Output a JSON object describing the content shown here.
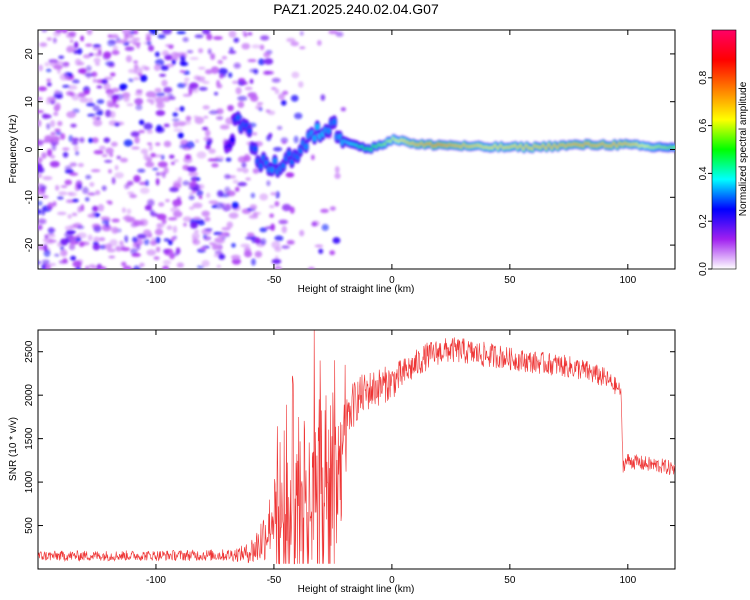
{
  "title": "PAZ1.2025.240.02.04.G07",
  "colors": {
    "line": "#ee3333",
    "axis": "#000000",
    "colormap": [
      "#ffffff",
      "#a020f0",
      "#0000ff",
      "#00ffff",
      "#00ff00",
      "#ffff00",
      "#ff8000",
      "#ff0000",
      "#ff0066"
    ]
  },
  "chart_data": [
    {
      "type": "heatmap",
      "title": "PAZ1.2025.240.02.04.G07",
      "xlabel": "Height of straight line (km)",
      "ylabel": "Frequency (Hz)",
      "xlim": [
        -150,
        120
      ],
      "ylim": [
        -25,
        25
      ],
      "xticks": [
        -100,
        -50,
        0,
        50,
        100
      ],
      "xtick_labels": [
        "-100",
        "-50",
        "0",
        "50",
        "100"
      ],
      "yticks": [
        -20,
        -10,
        0,
        10,
        20
      ],
      "ytick_labels": [
        "-20",
        "-10",
        "0",
        "10",
        "20"
      ],
      "colorbar": {
        "label": "Normalized spectral amplitude",
        "range": [
          0,
          1
        ],
        "ticks": [
          0,
          0.2,
          0.4,
          0.6,
          0.8
        ],
        "tick_labels": [
          "0.0",
          "0.2",
          "0.4",
          "0.6",
          "0.8"
        ]
      },
      "signal_track": {
        "description": "dominant frequency ridge vs height",
        "height_km": [
          -150,
          -100,
          -70,
          -65,
          -60,
          -55,
          -50,
          -45,
          -40,
          -35,
          -30,
          -25,
          -20,
          -15,
          -10,
          -5,
          0,
          5,
          10,
          20,
          40,
          60,
          80,
          100,
          110,
          120
        ],
        "freq_hz": [
          0,
          0,
          0,
          7,
          2,
          -3,
          -4,
          -2,
          -1,
          2,
          4,
          5,
          2,
          1,
          0,
          1,
          2,
          2,
          1,
          1,
          0.5,
          0.5,
          1,
          1,
          0.5,
          0.5
        ],
        "peak_amplitude": [
          0.1,
          0.12,
          0.2,
          0.3,
          0.28,
          0.3,
          0.32,
          0.3,
          0.3,
          0.32,
          0.35,
          0.3,
          0.35,
          0.4,
          0.5,
          0.55,
          0.6,
          0.65,
          0.7,
          0.75,
          0.65,
          0.68,
          0.72,
          0.7,
          0.6,
          0.55
        ]
      }
    },
    {
      "type": "line",
      "title": "",
      "xlabel": "Height of straight line (km)",
      "ylabel": "SNR (10 * v/v)",
      "xlim": [
        -150,
        120
      ],
      "ylim": [
        0,
        2750
      ],
      "xticks": [
        -100,
        -50,
        0,
        50,
        100
      ],
      "xtick_labels": [
        "-100",
        "-50",
        "0",
        "50",
        "100"
      ],
      "yticks": [
        500,
        1000,
        1500,
        2000,
        2500
      ],
      "ytick_labels": [
        "500",
        "1000",
        "1500",
        "2000",
        "2500"
      ],
      "series": [
        {
          "name": "SNR",
          "envelope_x": [
            -150,
            -100,
            -70,
            -62,
            -58,
            -55,
            -52,
            -50,
            -45,
            -40,
            -35,
            -30,
            -28,
            -25,
            -22,
            -20,
            -18,
            -15,
            -10,
            -5,
            0,
            5,
            10,
            15,
            20,
            25,
            30,
            35,
            40,
            45,
            50,
            60,
            70,
            80,
            90,
            95,
            97,
            98,
            100,
            105,
            110,
            115,
            120
          ],
          "envelope_y": [
            150,
            155,
            160,
            180,
            230,
            350,
            500,
            650,
            800,
            900,
            1000,
            1200,
            1250,
            1300,
            1400,
            1600,
            1800,
            1950,
            2050,
            2100,
            2150,
            2250,
            2350,
            2450,
            2500,
            2520,
            2510,
            2480,
            2460,
            2450,
            2420,
            2380,
            2350,
            2300,
            2200,
            2100,
            2050,
            1200,
            1250,
            1220,
            1200,
            1180,
            1150
          ],
          "noise_amplitude": [
            60,
            60,
            70,
            100,
            200,
            300,
            350,
            400,
            500,
            600,
            700,
            800,
            900,
            800,
            500,
            300,
            280,
            260,
            230,
            220,
            200,
            180,
            170,
            160,
            150,
            150,
            150,
            150,
            150,
            140,
            130,
            130,
            130,
            130,
            120,
            100,
            80,
            90,
            90,
            90,
            90,
            90,
            90
          ]
        }
      ]
    }
  ]
}
